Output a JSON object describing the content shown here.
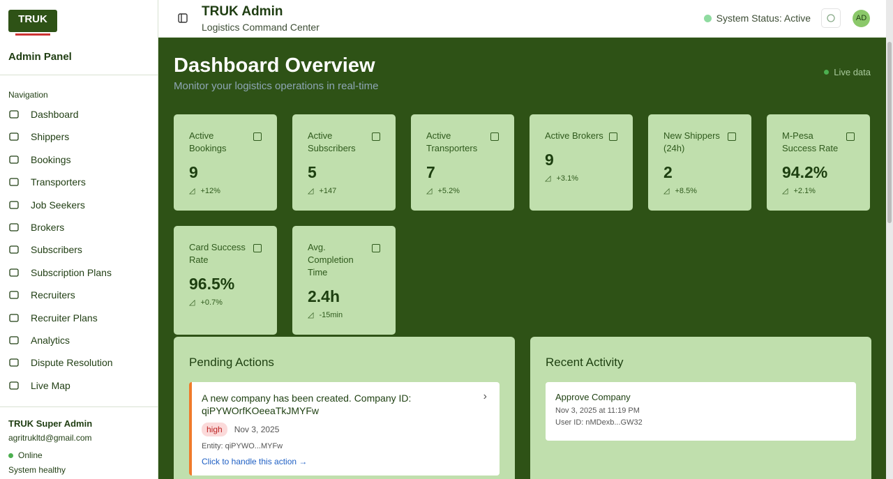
{
  "sidebar": {
    "logo_text": "TRUK",
    "title": "Admin Panel",
    "nav_heading": "Navigation",
    "nav": [
      "Dashboard",
      "Shippers",
      "Bookings",
      "Transporters",
      "Job Seekers",
      "Brokers",
      "Subscribers",
      "Subscription Plans",
      "Recruiters",
      "Recruiter Plans",
      "Analytics",
      "Dispute Resolution",
      "Live Map"
    ],
    "user": {
      "name": "TRUK Super Admin",
      "email": "agritrukltd@gmail.com",
      "status": "Online",
      "health": "System healthy"
    }
  },
  "header": {
    "title": "TRUK Admin",
    "subtitle": "Logistics Command Center",
    "status": "System Status: Active",
    "avatar": "AD"
  },
  "main": {
    "title": "Dashboard Overview",
    "subtitle": "Monitor your logistics operations in real-time",
    "live": "Live data",
    "stats": [
      {
        "label": "Active Bookings",
        "value": "9",
        "change": "+12%"
      },
      {
        "label": "Active Subscribers",
        "value": "5",
        "change": "+147"
      },
      {
        "label": "Active Transporters",
        "value": "7",
        "change": "+5.2%"
      },
      {
        "label": "Active Brokers",
        "value": "9",
        "change": "+3.1%"
      },
      {
        "label": "New Shippers (24h)",
        "value": "2",
        "change": "+8.5%"
      },
      {
        "label": "M-Pesa Success Rate",
        "value": "94.2%",
        "change": "+2.1%"
      },
      {
        "label": "Card Success Rate",
        "value": "96.5%",
        "change": "+0.7%"
      },
      {
        "label": "Avg. Completion Time",
        "value": "2.4h",
        "change": "-15min"
      }
    ],
    "pending": {
      "title": "Pending Actions",
      "items": [
        {
          "text": "A new company has been created. Company ID: qiPYWOrfKOeeaTkJMYFw",
          "priority": "high",
          "date": "Nov 3, 2025",
          "entity": "Entity: qiPYWO...MYFw",
          "link": "Click to handle this action →"
        }
      ]
    },
    "activity": {
      "title": "Recent Activity",
      "items": [
        {
          "title": "Approve Company",
          "date": "Nov 3, 2025 at 11:19 PM",
          "user": "User ID: nMDexb...GW32"
        }
      ]
    }
  }
}
